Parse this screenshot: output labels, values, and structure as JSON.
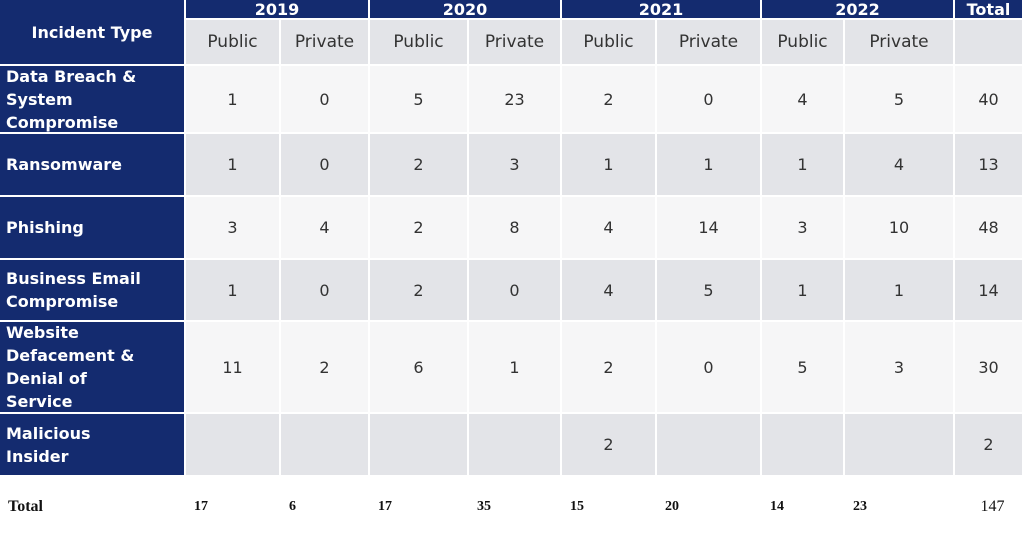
{
  "table": {
    "corner": "Incident Type",
    "years": [
      "2019",
      "2020",
      "2021",
      "2022"
    ],
    "total_header": "Total",
    "subheaders": [
      "Public",
      "Private",
      "Public",
      "Private",
      "Public",
      "Private",
      "Public",
      "Private"
    ],
    "rows": [
      {
        "label": "Data Breach & System Compromise",
        "values": [
          1,
          0,
          5,
          23,
          2,
          0,
          4,
          5
        ],
        "total": 40
      },
      {
        "label": "Ransomware",
        "values": [
          1,
          0,
          2,
          3,
          1,
          1,
          1,
          4
        ],
        "total": 13
      },
      {
        "label": "Phishing",
        "values": [
          3,
          4,
          2,
          8,
          4,
          14,
          3,
          10
        ],
        "total": 48
      },
      {
        "label": "Business Email Compromise",
        "values": [
          1,
          0,
          2,
          0,
          4,
          5,
          1,
          1
        ],
        "total": 14
      },
      {
        "label": "Website Defacement & Denial of Service",
        "values": [
          11,
          2,
          6,
          1,
          2,
          0,
          5,
          3
        ],
        "total": 30
      },
      {
        "label": "Malicious Insider",
        "values": [
          null,
          null,
          null,
          null,
          2,
          null,
          null,
          null
        ],
        "total": 2
      }
    ],
    "totals": {
      "label": "Total",
      "values": [
        17,
        6,
        17,
        35,
        15,
        20,
        14,
        23
      ],
      "total": 147
    }
  }
}
